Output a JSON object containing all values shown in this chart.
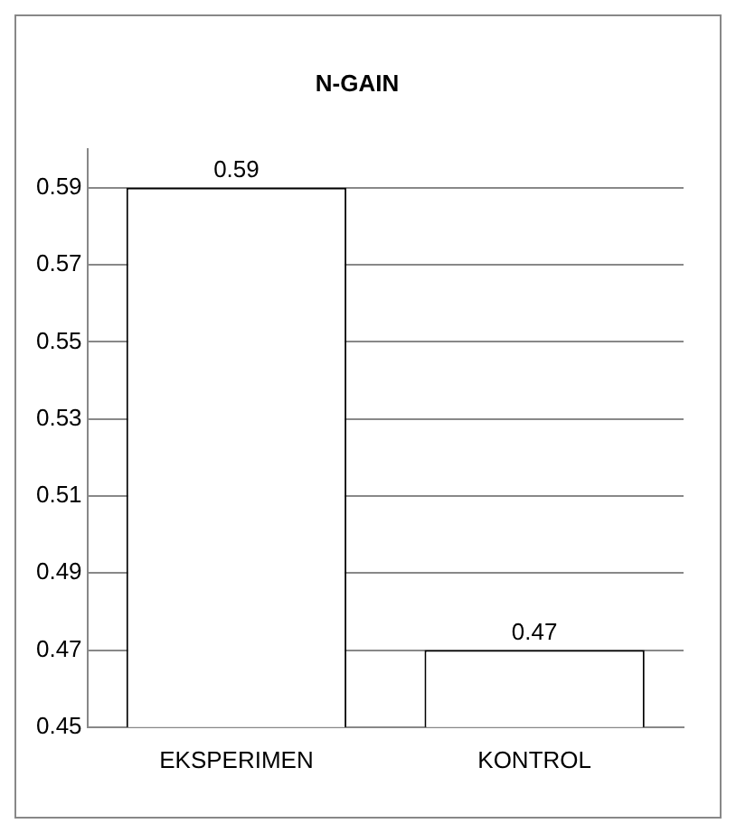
{
  "chart_data": {
    "type": "bar",
    "title": "N-GAIN",
    "categories": [
      "EKSPERIMEN",
      "KONTROL"
    ],
    "values": [
      0.59,
      0.47
    ],
    "colors": [
      "#ffffff",
      "#ffffff"
    ],
    "ylim": [
      0.45,
      0.6
    ],
    "yticks": [
      0.45,
      0.47,
      0.49,
      0.51,
      0.53,
      0.55,
      0.57,
      0.59
    ],
    "grid": "y",
    "data_labels": true
  }
}
